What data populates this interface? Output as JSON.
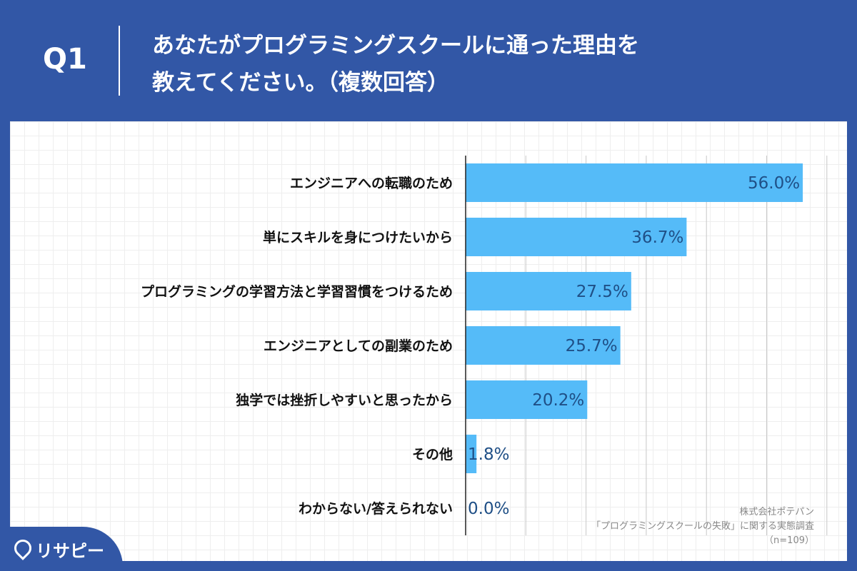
{
  "header": {
    "question_number": "Q1",
    "title_line1": "あなたがプログラミングスクールに通った理由を",
    "title_line2": "教えてください。（複数回答）"
  },
  "chart_data": {
    "type": "bar",
    "orientation": "horizontal",
    "categories": [
      "エンジニアへの転職のため",
      "単にスキルを身につけたいから",
      "プログラミングの学習方法と学習習慣をつけるため",
      "エンジニアとしての副業のため",
      "独学では挫折しやすいと思ったから",
      "その他",
      "わからない/答えられない"
    ],
    "values": [
      56.0,
      36.7,
      27.5,
      25.7,
      20.2,
      1.8,
      0.0
    ],
    "value_labels": [
      "56.0%",
      "36.7%",
      "27.5%",
      "25.7%",
      "20.2%",
      "1.8%",
      "0.0%"
    ],
    "xlim": [
      0,
      60
    ],
    "grid": true,
    "bar_color": "#55bbf8"
  },
  "source": {
    "line1": "株式会社ポテパン",
    "line2": "「プログラミングスクールの失敗」に関する実態調査",
    "line3": "（n=109）"
  },
  "logo": {
    "text": "リサピー",
    "icon": "map-pin-icon"
  }
}
